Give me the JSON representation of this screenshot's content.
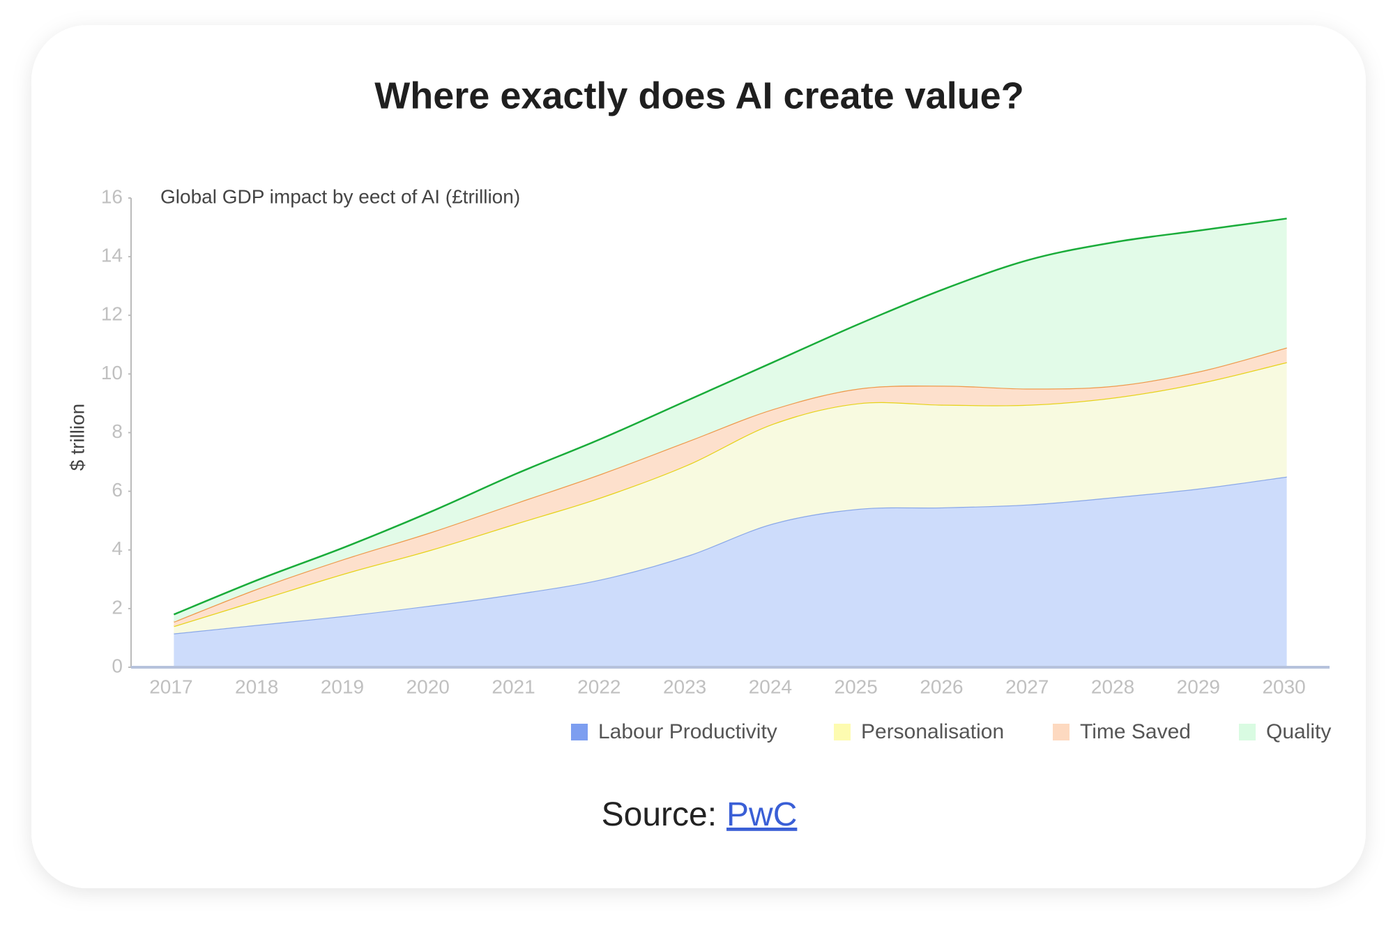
{
  "chart_data": {
    "type": "stacked-area",
    "title": "Where exactly does AI create value?",
    "subtitle": "Global GDP impact by eect of AI (£trillion)",
    "y_label": "$ trillion",
    "categories": [
      "2017",
      "2018",
      "2019",
      "2020",
      "2021",
      "2022",
      "2023",
      "2024",
      "2025",
      "2026",
      "2027",
      "2028",
      "2029",
      "2030"
    ],
    "series": [
      {
        "name": "Labour Productivity",
        "color": "#cddcfb",
        "line_color": "#8aa8e8",
        "legend_color": "#7d9ef0",
        "values": [
          1.15,
          1.45,
          1.75,
          2.1,
          2.5,
          3.0,
          3.8,
          4.9,
          5.4,
          5.45,
          5.55,
          5.8,
          6.1,
          6.5
        ]
      },
      {
        "name": "Personalisation",
        "color": "#f8fae0",
        "line_color": "#e6d21a",
        "legend_color": "#fdfbb0",
        "values": [
          0.25,
          0.85,
          1.45,
          1.9,
          2.4,
          2.8,
          3.1,
          3.4,
          3.6,
          3.5,
          3.4,
          3.4,
          3.6,
          3.9
        ]
      },
      {
        "name": "Time Saved",
        "color": "#fde0cc",
        "line_color": "#ee9a4d",
        "legend_color": "#fdd9c0",
        "values": [
          0.15,
          0.4,
          0.5,
          0.6,
          0.7,
          0.8,
          0.8,
          0.5,
          0.5,
          0.65,
          0.55,
          0.4,
          0.4,
          0.5
        ]
      },
      {
        "name": "Quality",
        "color": "#e2fbe8",
        "line_color": "#1aac3a",
        "legend_color": "#d9fbe2",
        "values": [
          0.25,
          0.3,
          0.4,
          0.7,
          1.0,
          1.2,
          1.4,
          1.6,
          2.2,
          3.3,
          4.4,
          4.9,
          4.8,
          4.4
        ]
      }
    ],
    "ylim": [
      0,
      16
    ],
    "yticks": [
      0,
      2,
      4,
      6,
      8,
      10,
      12,
      14,
      16
    ],
    "source": {
      "label": "Source:",
      "link": "PwC"
    }
  }
}
